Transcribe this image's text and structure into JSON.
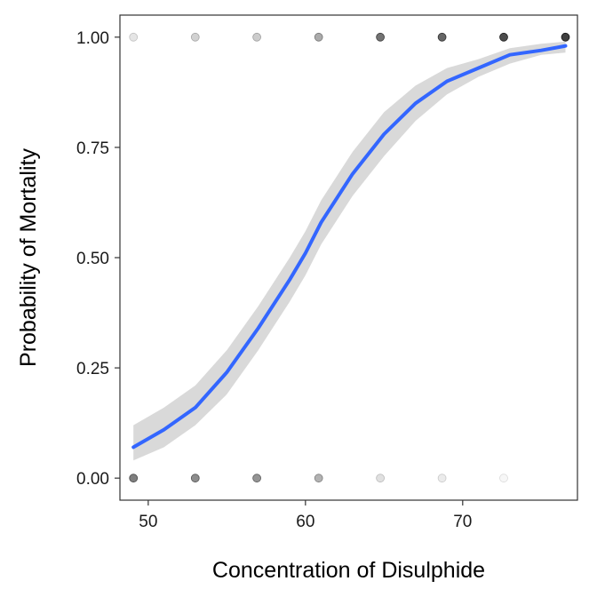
{
  "chart_data": {
    "type": "scatter",
    "xlabel": "Concentration of Disulphide",
    "ylabel": "Probability of Mortality",
    "xlim": [
      48.2,
      77.3
    ],
    "ylim": [
      -0.05,
      1.05
    ],
    "x_ticks": [
      50,
      60,
      70
    ],
    "y_ticks": [
      0.0,
      0.25,
      0.5,
      0.75,
      1.0
    ],
    "y_tick_labels": [
      "0.00",
      "0.25",
      "0.50",
      "0.75",
      "1.00"
    ],
    "grid": false,
    "series": [
      {
        "type": "points_alpha_overplot",
        "points": [
          {
            "x": 49.06,
            "y": 0,
            "alpha": 0.5
          },
          {
            "x": 49.06,
            "y": 1,
            "alpha": 0.1
          },
          {
            "x": 52.99,
            "y": 0,
            "alpha": 0.45
          },
          {
            "x": 52.99,
            "y": 1,
            "alpha": 0.18
          },
          {
            "x": 56.91,
            "y": 0,
            "alpha": 0.42
          },
          {
            "x": 56.91,
            "y": 1,
            "alpha": 0.2
          },
          {
            "x": 60.84,
            "y": 0,
            "alpha": 0.3
          },
          {
            "x": 60.84,
            "y": 1,
            "alpha": 0.33
          },
          {
            "x": 64.76,
            "y": 0,
            "alpha": 0.12
          },
          {
            "x": 64.76,
            "y": 1,
            "alpha": 0.55
          },
          {
            "x": 68.69,
            "y": 0,
            "alpha": 0.08
          },
          {
            "x": 68.69,
            "y": 1,
            "alpha": 0.6
          },
          {
            "x": 72.61,
            "y": 0,
            "alpha": 0.03
          },
          {
            "x": 72.61,
            "y": 1,
            "alpha": 0.7
          },
          {
            "x": 76.54,
            "y": 1,
            "alpha": 0.75
          }
        ]
      },
      {
        "type": "logistic_fit_line",
        "x": [
          49.06,
          51.0,
          53.0,
          55.0,
          57.0,
          59.0,
          60.0,
          61.0,
          63.0,
          65.0,
          67.0,
          69.0,
          71.0,
          73.0,
          75.0,
          76.54
        ],
        "y": [
          0.07,
          0.11,
          0.16,
          0.24,
          0.34,
          0.45,
          0.51,
          0.58,
          0.69,
          0.78,
          0.85,
          0.9,
          0.93,
          0.96,
          0.97,
          0.98
        ],
        "ci_low": [
          0.04,
          0.07,
          0.12,
          0.19,
          0.29,
          0.4,
          0.46,
          0.53,
          0.64,
          0.73,
          0.81,
          0.87,
          0.91,
          0.94,
          0.96,
          0.965
        ],
        "ci_high": [
          0.12,
          0.16,
          0.21,
          0.29,
          0.39,
          0.5,
          0.56,
          0.63,
          0.74,
          0.83,
          0.89,
          0.93,
          0.95,
          0.975,
          0.985,
          0.99
        ],
        "color": "#3366FF",
        "ribbon_color": "#D9D9D9"
      }
    ]
  }
}
